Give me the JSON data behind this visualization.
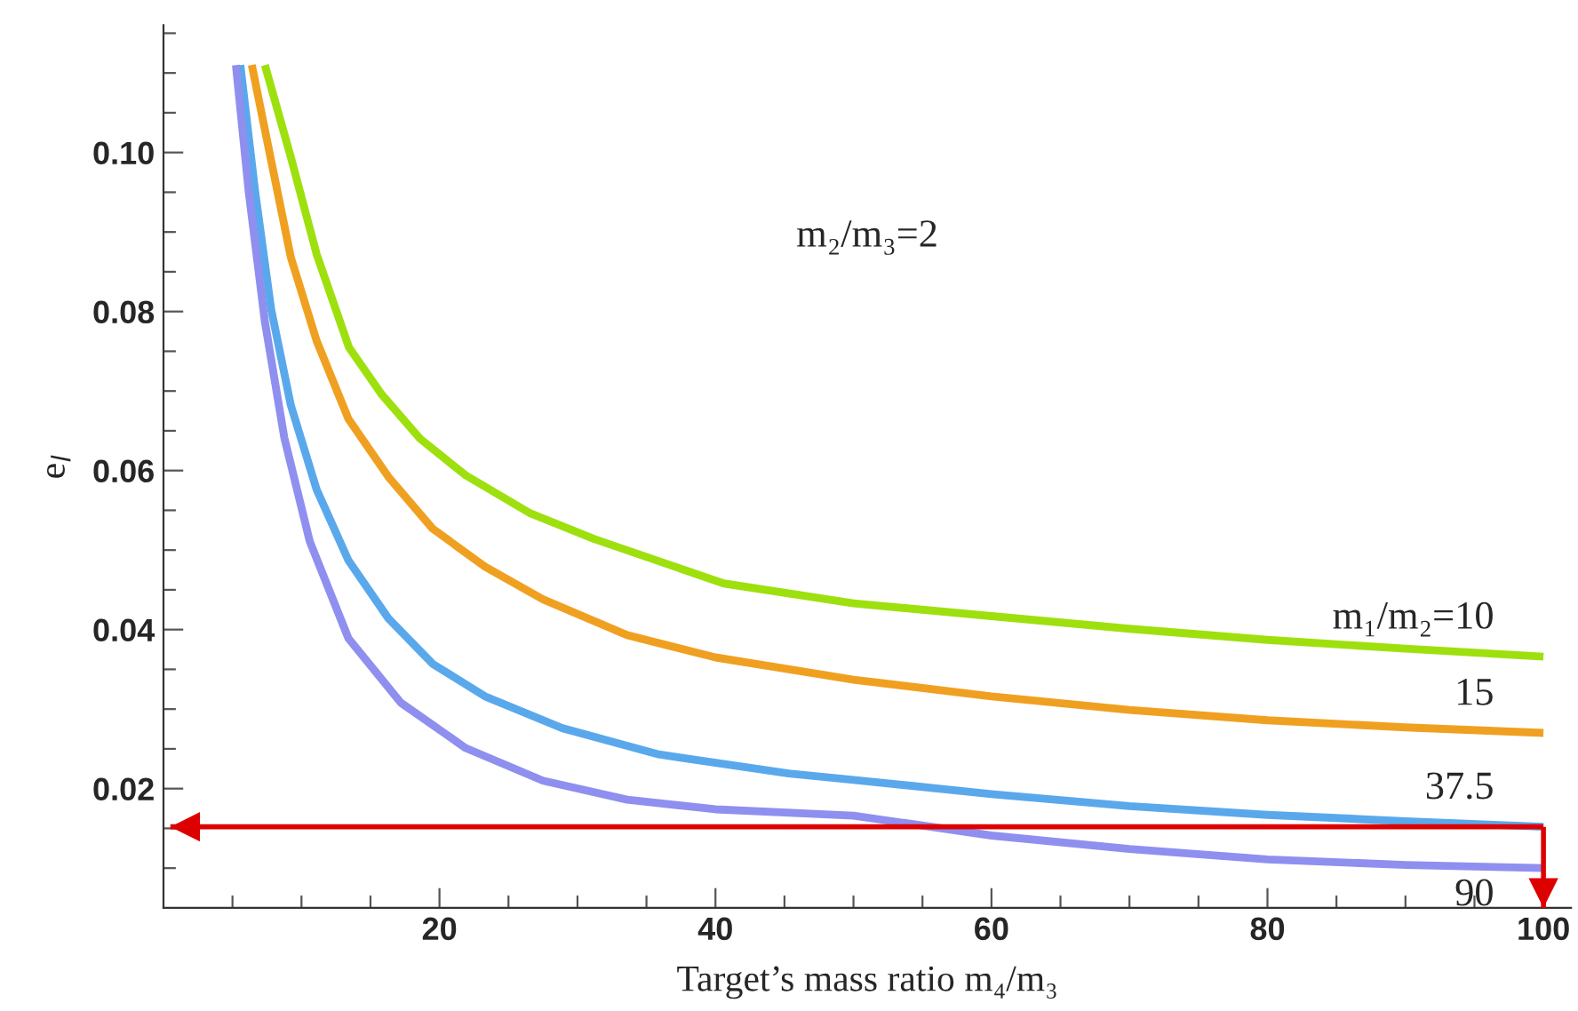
{
  "chart_data": {
    "type": "line",
    "xlabel": "Target’s mass ratio m₄/m₃",
    "ylabel": "e$_{l}$",
    "xlim": [
      0,
      102
    ],
    "ylim": [
      0.005,
      0.116
    ],
    "xticks": [
      {
        "value": 5,
        "label": null
      },
      {
        "value": 10,
        "label": null
      },
      {
        "value": 15,
        "label": null
      },
      20,
      {
        "value": 25,
        "label": null
      },
      {
        "value": 30,
        "label": null
      },
      {
        "value": 35,
        "label": null
      },
      40,
      {
        "value": 45,
        "label": null
      },
      {
        "value": 50,
        "label": null
      },
      {
        "value": 55,
        "label": null
      },
      60,
      {
        "value": 65,
        "label": null
      },
      {
        "value": 70,
        "label": null
      },
      {
        "value": 75,
        "label": null
      },
      80,
      {
        "value": 85,
        "label": null
      },
      {
        "value": 90,
        "label": null
      },
      {
        "value": 95,
        "label": null
      },
      100
    ],
    "yticks": [
      {
        "value": 0.01,
        "label": null
      },
      {
        "value": 0.015,
        "label": null
      },
      0.02,
      {
        "value": 0.025,
        "label": null
      },
      {
        "value": 0.03,
        "label": null
      },
      {
        "value": 0.035,
        "label": null
      },
      0.04,
      {
        "value": 0.045,
        "label": null
      },
      {
        "value": 0.05,
        "label": null
      },
      {
        "value": 0.055,
        "label": null
      },
      0.06,
      {
        "value": 0.065,
        "label": null
      },
      {
        "value": 0.07,
        "label": null
      },
      {
        "value": 0.075,
        "label": null
      },
      0.08,
      {
        "value": 0.085,
        "label": null
      },
      {
        "value": 0.09,
        "label": null
      },
      {
        "value": 0.095,
        "label": null
      },
      {
        "value": 0.1,
        "label": "0.10"
      },
      {
        "value": 0.105,
        "label": null
      },
      {
        "value": 0.11,
        "label": null
      },
      {
        "value": 0.115,
        "label": null
      }
    ],
    "grid": false,
    "legend": false,
    "marker": "none",
    "line_style": "solid",
    "series": [
      {
        "color": "#9ee00e",
        "x": [
          7.35,
          9.23,
          11.1,
          13.44,
          15.8,
          18.6,
          21.9,
          26.6,
          31.2,
          40.6,
          50,
          60,
          70,
          80,
          90,
          100
        ],
        "values": [
          0.111,
          0.0994,
          0.0872,
          0.0755,
          0.0696,
          0.064,
          0.0594,
          0.0546,
          0.0514,
          0.0458,
          0.0433,
          0.0417,
          0.0401,
          0.0387,
          0.0376,
          0.0366
        ]
      },
      {
        "color": "#f0a020",
        "x": [
          6.4,
          7.8,
          9.23,
          11.1,
          13.4,
          16.3,
          19.5,
          23.3,
          27.5,
          33.6,
          40,
          50,
          60,
          70,
          80,
          90,
          100
        ],
        "values": [
          0.111,
          0.099,
          0.0868,
          0.0763,
          0.0665,
          0.0592,
          0.0527,
          0.0479,
          0.0438,
          0.0393,
          0.0365,
          0.0337,
          0.0316,
          0.0299,
          0.0286,
          0.0277,
          0.027
        ]
      },
      {
        "color": "#5aa8ec",
        "x": [
          5.57,
          6.65,
          7.8,
          9.23,
          11.1,
          13.4,
          16.3,
          19.5,
          23.3,
          28.9,
          35.9,
          45.3,
          50,
          60,
          70,
          80,
          90,
          100
        ],
        "values": [
          0.111,
          0.095,
          0.0803,
          0.0682,
          0.0576,
          0.0487,
          0.0414,
          0.0357,
          0.0316,
          0.0276,
          0.0243,
          0.0219,
          0.0211,
          0.0193,
          0.0178,
          0.0167,
          0.0159,
          0.0152
        ]
      },
      {
        "color": "#8f8ff0",
        "x": [
          5.25,
          6.18,
          7.35,
          8.76,
          10.6,
          13.4,
          17.2,
          21.9,
          27.5,
          33.6,
          40,
          50,
          60,
          70,
          80,
          90,
          100
        ],
        "values": [
          0.111,
          0.095,
          0.0787,
          0.0641,
          0.0511,
          0.0389,
          0.0308,
          0.0251,
          0.021,
          0.0186,
          0.0174,
          0.0166,
          0.0141,
          0.0124,
          0.0111,
          0.0104,
          0.01
        ]
      }
    ],
    "ref_lines": [
      {
        "axis": "y",
        "value": 0.0152,
        "color": "#dd0000"
      },
      {
        "axis": "x",
        "value": 100,
        "color": "#dd0000"
      }
    ],
    "annotations": [
      "m₂/m₃=2",
      "m₁/m₂=10",
      "15",
      "37.5",
      "90"
    ]
  }
}
